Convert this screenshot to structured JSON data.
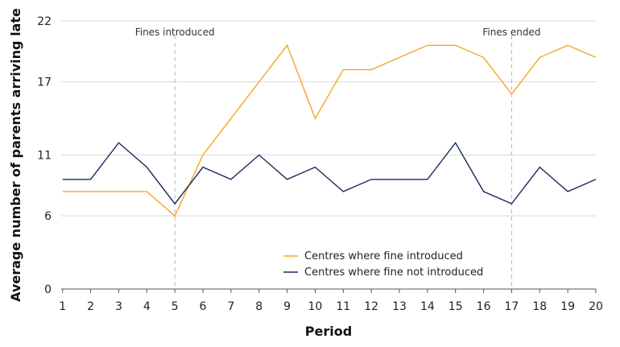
{
  "chart_data": {
    "type": "line",
    "xlabel": "Period",
    "ylabel": "Average number of parents arriving late",
    "x": [
      1,
      2,
      3,
      4,
      5,
      6,
      7,
      8,
      9,
      10,
      11,
      12,
      13,
      14,
      15,
      16,
      17,
      18,
      19,
      20
    ],
    "xlim": [
      0.95,
      20
    ],
    "ylim": [
      0,
      22
    ],
    "yticks": [
      0,
      6,
      11,
      17,
      22
    ],
    "grid": "horizontal",
    "legend_position": "bottom-center",
    "series": [
      {
        "name": "Centres where fine introduced",
        "color": "#F5A623",
        "values": [
          8,
          8,
          8,
          8,
          6,
          11,
          14,
          17,
          20,
          14,
          18,
          18,
          19,
          20,
          20,
          19,
          16,
          19,
          20,
          19
        ]
      },
      {
        "name": "Centres where fine not introduced",
        "color": "#1B2A5E",
        "values": [
          9,
          9,
          12,
          10,
          7,
          10,
          9,
          11,
          9,
          10,
          8,
          9,
          9,
          9,
          12,
          8,
          7,
          10,
          8,
          9
        ]
      }
    ],
    "annotations": [
      {
        "x": 5,
        "label": "Fines introduced"
      },
      {
        "x": 17,
        "label": "Fines ended"
      }
    ]
  }
}
